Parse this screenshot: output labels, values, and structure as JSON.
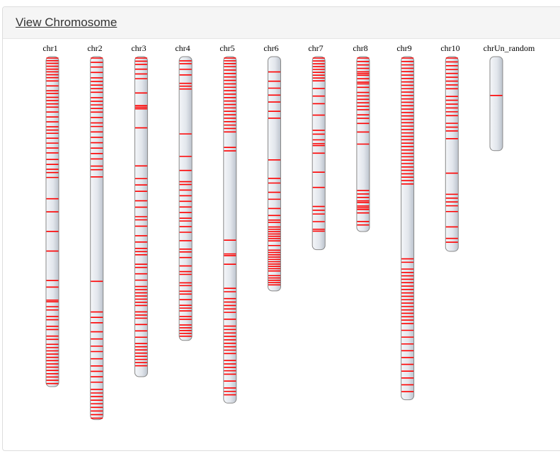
{
  "header": {
    "title": "View Chromosome"
  },
  "colors": {
    "marker": "#ff0000",
    "chromosome_fill": "#e2e6ec",
    "chromosome_outline": "#888888",
    "header_bg": "#f5f5f5"
  },
  "chromosomes": [
    {
      "name": "chr1",
      "relative_length": 1.0,
      "markers": [
        0.0,
        0.008,
        0.016,
        0.025,
        0.034,
        0.042,
        0.051,
        0.06,
        0.07,
        0.085,
        0.1,
        0.108,
        0.12,
        0.13,
        0.14,
        0.15,
        0.165,
        0.18,
        0.195,
        0.21,
        0.22,
        0.23,
        0.245,
        0.26,
        0.275,
        0.29,
        0.31,
        0.325,
        0.34,
        0.35,
        0.365,
        0.43,
        0.47,
        0.53,
        0.59,
        0.68,
        0.7,
        0.74,
        0.745,
        0.76,
        0.77,
        0.79,
        0.8,
        0.82,
        0.83,
        0.85,
        0.86,
        0.875,
        0.885,
        0.895,
        0.905,
        0.915,
        0.925,
        0.935,
        0.945,
        0.955,
        0.965,
        0.975,
        0.985,
        0.995
      ]
    },
    {
      "name": "chr2",
      "relative_length": 1.1,
      "markers": [
        0.0,
        0.012,
        0.025,
        0.04,
        0.055,
        0.065,
        0.075,
        0.085,
        0.095,
        0.11,
        0.12,
        0.13,
        0.14,
        0.15,
        0.165,
        0.18,
        0.19,
        0.205,
        0.22,
        0.235,
        0.25,
        0.265,
        0.28,
        0.3,
        0.31,
        0.33,
        0.62,
        0.705,
        0.72,
        0.735,
        0.76,
        0.78,
        0.8,
        0.815,
        0.835,
        0.855,
        0.87,
        0.885,
        0.9,
        0.92,
        0.93,
        0.94,
        0.95,
        0.96,
        0.97,
        0.98,
        0.99,
        1.0
      ]
    },
    {
      "name": "chr3",
      "relative_length": 0.97,
      "markers": [
        0.0,
        0.01,
        0.02,
        0.035,
        0.05,
        0.065,
        0.11,
        0.15,
        0.155,
        0.16,
        0.22,
        0.34,
        0.38,
        0.4,
        0.42,
        0.45,
        0.47,
        0.5,
        0.51,
        0.53,
        0.56,
        0.58,
        0.6,
        0.61,
        0.62,
        0.65,
        0.66,
        0.68,
        0.7,
        0.72,
        0.73,
        0.74,
        0.75,
        0.76,
        0.77,
        0.78,
        0.8,
        0.81,
        0.82,
        0.84,
        0.86,
        0.88,
        0.9,
        0.91,
        0.92,
        0.93,
        0.94,
        0.95,
        0.96,
        0.97
      ]
    },
    {
      "name": "chr4",
      "relative_length": 0.86,
      "markers": [
        0.01,
        0.02,
        0.04,
        0.06,
        0.09,
        0.1,
        0.11,
        0.27,
        0.35,
        0.4,
        0.44,
        0.45,
        0.47,
        0.49,
        0.51,
        0.53,
        0.55,
        0.57,
        0.58,
        0.6,
        0.62,
        0.65,
        0.68,
        0.69,
        0.71,
        0.74,
        0.76,
        0.77,
        0.8,
        0.81,
        0.83,
        0.84,
        0.86,
        0.88,
        0.89,
        0.9,
        0.92,
        0.93,
        0.95,
        0.96,
        0.97,
        0.98,
        0.99
      ]
    },
    {
      "name": "chr5",
      "relative_length": 1.05,
      "markers": [
        0.0,
        0.008,
        0.016,
        0.025,
        0.035,
        0.045,
        0.055,
        0.065,
        0.075,
        0.085,
        0.095,
        0.105,
        0.115,
        0.125,
        0.135,
        0.145,
        0.155,
        0.165,
        0.175,
        0.185,
        0.195,
        0.205,
        0.215,
        0.26,
        0.27,
        0.53,
        0.57,
        0.575,
        0.6,
        0.67,
        0.68,
        0.7,
        0.71,
        0.72,
        0.73,
        0.74,
        0.76,
        0.78,
        0.79,
        0.8,
        0.81,
        0.82,
        0.83,
        0.84,
        0.85,
        0.86,
        0.88,
        0.89,
        0.9,
        0.91,
        0.92,
        0.94,
        0.96,
        0.97,
        0.98
      ]
    },
    {
      "name": "chr6",
      "relative_length": 0.71,
      "markers": [
        0.06,
        0.1,
        0.13,
        0.16,
        0.19,
        0.23,
        0.26,
        0.44,
        0.52,
        0.54,
        0.58,
        0.61,
        0.65,
        0.68,
        0.7,
        0.71,
        0.73,
        0.74,
        0.75,
        0.76,
        0.77,
        0.78,
        0.79,
        0.81,
        0.83,
        0.84,
        0.85,
        0.86,
        0.87,
        0.88,
        0.89,
        0.9,
        0.91,
        0.92,
        0.94,
        0.95,
        0.96,
        0.97,
        0.98
      ]
    },
    {
      "name": "chr7",
      "relative_length": 0.585,
      "markers": [
        0.0,
        0.015,
        0.03,
        0.045,
        0.06,
        0.075,
        0.09,
        0.105,
        0.12,
        0.16,
        0.2,
        0.24,
        0.3,
        0.38,
        0.4,
        0.43,
        0.45,
        0.46,
        0.5,
        0.6,
        0.68,
        0.78,
        0.8,
        0.82,
        0.86,
        0.9,
        0.91
      ]
    },
    {
      "name": "chr8",
      "relative_length": 0.53,
      "markers": [
        0.0,
        0.02,
        0.04,
        0.06,
        0.08,
        0.09,
        0.1,
        0.12,
        0.14,
        0.15,
        0.17,
        0.2,
        0.22,
        0.24,
        0.26,
        0.28,
        0.3,
        0.33,
        0.35,
        0.38,
        0.43,
        0.5,
        0.77,
        0.79,
        0.81,
        0.83,
        0.84,
        0.86,
        0.87,
        0.88,
        0.9,
        0.95,
        0.97
      ]
    },
    {
      "name": "chr9",
      "relative_length": 1.04,
      "markers": [
        0.0,
        0.01,
        0.02,
        0.03,
        0.04,
        0.05,
        0.06,
        0.07,
        0.08,
        0.09,
        0.1,
        0.11,
        0.12,
        0.13,
        0.14,
        0.15,
        0.16,
        0.17,
        0.18,
        0.19,
        0.2,
        0.21,
        0.22,
        0.23,
        0.24,
        0.25,
        0.26,
        0.27,
        0.28,
        0.29,
        0.3,
        0.31,
        0.32,
        0.33,
        0.34,
        0.35,
        0.36,
        0.37,
        0.59,
        0.6,
        0.62,
        0.63,
        0.64,
        0.65,
        0.66,
        0.67,
        0.68,
        0.69,
        0.7,
        0.71,
        0.72,
        0.73,
        0.74,
        0.75,
        0.76,
        0.77,
        0.78,
        0.8,
        0.82,
        0.84,
        0.86,
        0.88,
        0.9,
        0.92,
        0.94,
        0.96,
        0.98
      ]
    },
    {
      "name": "chr10",
      "relative_length": 0.59,
      "markers": [
        0.0,
        0.02,
        0.04,
        0.06,
        0.08,
        0.1,
        0.12,
        0.14,
        0.16,
        0.2,
        0.22,
        0.24,
        0.26,
        0.28,
        0.3,
        0.34,
        0.36,
        0.38,
        0.42,
        0.6,
        0.71,
        0.73,
        0.75,
        0.77,
        0.8,
        0.88,
        0.94,
        0.96
      ]
    },
    {
      "name": "chrUn_random",
      "relative_length": 0.285,
      "markers": [
        0.41
      ]
    }
  ]
}
